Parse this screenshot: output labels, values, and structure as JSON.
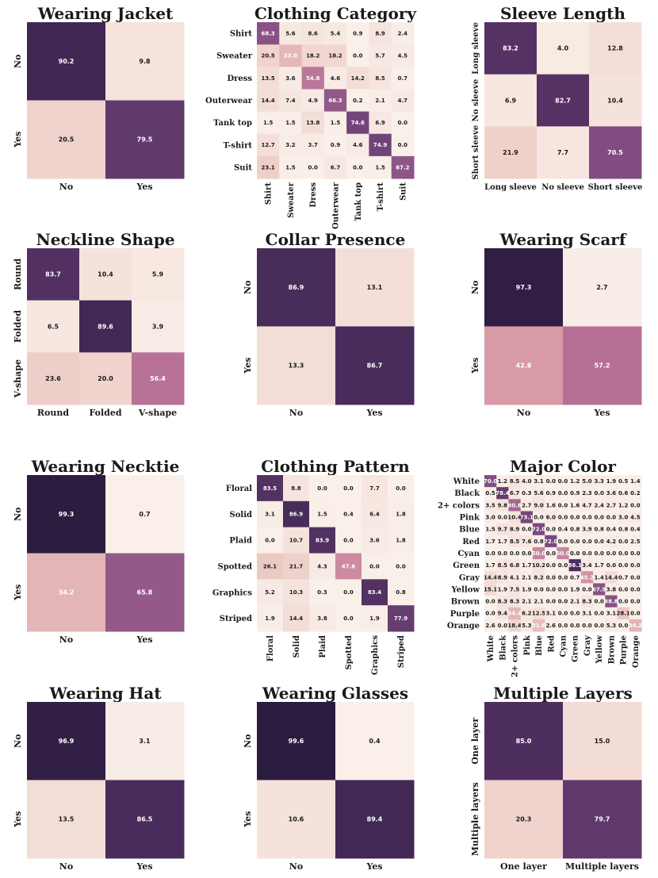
{
  "chart_data": [
    {
      "type": "heatmap",
      "title": "Wearing Jacket",
      "rows": [
        "No",
        "Yes"
      ],
      "cols": [
        "No",
        "Yes"
      ],
      "values": [
        [
          90.2,
          9.8
        ],
        [
          20.5,
          79.5
        ]
      ]
    },
    {
      "type": "heatmap",
      "title": "Clothing Category",
      "rows": [
        "Shirt",
        "Sweater",
        "Dress",
        "Outerwear",
        "Tank top",
        "T-shirt",
        "Suit"
      ],
      "cols": [
        "Shirt",
        "Sweater",
        "Dress",
        "Outerwear",
        "Tank top",
        "T-shirt",
        "Suit"
      ],
      "values": [
        [
          68.3,
          5.6,
          8.6,
          5.4,
          0.9,
          8.9,
          2.4
        ],
        [
          20.5,
          33.0,
          18.2,
          18.2,
          0.0,
          5.7,
          4.5
        ],
        [
          13.5,
          3.6,
          54.8,
          4.6,
          14.2,
          8.5,
          0.7
        ],
        [
          14.4,
          7.4,
          4.9,
          66.3,
          0.2,
          2.1,
          4.7
        ],
        [
          1.5,
          1.5,
          13.8,
          1.5,
          74.6,
          6.9,
          0.0
        ],
        [
          12.7,
          3.2,
          3.7,
          0.9,
          4.6,
          74.9,
          0.0
        ],
        [
          23.1,
          1.5,
          0.0,
          6.7,
          0.0,
          1.5,
          67.2
        ]
      ]
    },
    {
      "type": "heatmap",
      "title": "Sleeve Length",
      "rows": [
        "Long sleeve",
        "No sleeve",
        "Short sleeve"
      ],
      "cols": [
        "Long sleeve",
        "No sleeve",
        "Short sleeve"
      ],
      "values": [
        [
          83.2,
          4.0,
          12.8
        ],
        [
          6.9,
          82.7,
          10.4
        ],
        [
          21.9,
          7.7,
          70.5
        ]
      ]
    },
    {
      "type": "heatmap",
      "title": "Neckline Shape",
      "rows": [
        "Round",
        "Folded",
        "V-shape"
      ],
      "cols": [
        "Round",
        "Folded",
        "V-shape"
      ],
      "values": [
        [
          83.7,
          10.4,
          5.9
        ],
        [
          6.5,
          89.6,
          3.9
        ],
        [
          23.6,
          20.0,
          56.4
        ]
      ]
    },
    {
      "type": "heatmap",
      "title": "Collar Presence",
      "rows": [
        "No",
        "Yes"
      ],
      "cols": [
        "No",
        "Yes"
      ],
      "values": [
        [
          86.9,
          13.1
        ],
        [
          13.3,
          86.7
        ]
      ]
    },
    {
      "type": "heatmap",
      "title": "Wearing Scarf",
      "rows": [
        "No",
        "Yes"
      ],
      "cols": [
        "No",
        "Yes"
      ],
      "values": [
        [
          97.3,
          2.7
        ],
        [
          42.8,
          57.2
        ]
      ]
    },
    {
      "type": "heatmap",
      "title": "Wearing Necktie",
      "rows": [
        "No",
        "Yes"
      ],
      "cols": [
        "No",
        "Yes"
      ],
      "values": [
        [
          99.3,
          0.7
        ],
        [
          34.2,
          65.8
        ]
      ]
    },
    {
      "type": "heatmap",
      "title": "Clothing Pattern",
      "rows": [
        "Floral",
        "Solid",
        "Plaid",
        "Spotted",
        "Graphics",
        "Striped"
      ],
      "cols": [
        "Floral",
        "Solid",
        "Plaid",
        "Spotted",
        "Graphics",
        "Striped"
      ],
      "values": [
        [
          83.5,
          8.8,
          0.0,
          0.0,
          7.7,
          0.0
        ],
        [
          3.1,
          86.9,
          1.5,
          0.4,
          6.4,
          1.8
        ],
        [
          0.0,
          10.7,
          83.9,
          0.0,
          3.6,
          1.8
        ],
        [
          26.1,
          21.7,
          4.3,
          47.8,
          0.0,
          0.0
        ],
        [
          5.2,
          10.3,
          0.3,
          0.0,
          83.4,
          0.8
        ],
        [
          1.9,
          14.4,
          3.8,
          0.0,
          1.9,
          77.9
        ]
      ]
    },
    {
      "type": "heatmap",
      "title": "Major Color",
      "rows": [
        "White",
        "Black",
        "2+ colors",
        "Pink",
        "Blue",
        "Red",
        "Cyan",
        "Green",
        "Gray",
        "Yellow",
        "Brown",
        "Purple",
        "Orange"
      ],
      "cols": [
        "White",
        "Black",
        "2+ colors",
        "Pink",
        "Blue",
        "Red",
        "Cyan",
        "Green",
        "Gray",
        "Yellow",
        "Brown",
        "Purple",
        "Orange"
      ],
      "values": [
        [
          70.0,
          1.2,
          8.5,
          4.0,
          3.1,
          0.0,
          0.0,
          1.2,
          5.0,
          3.3,
          1.9,
          0.5,
          1.4
        ],
        [
          0.5,
          78.4,
          6.7,
          0.3,
          5.6,
          0.9,
          0.0,
          0.9,
          2.3,
          0.0,
          3.6,
          0.6,
          0.2
        ],
        [
          3.5,
          9.8,
          60.8,
          2.7,
          9.0,
          1.6,
          0.0,
          1.6,
          4.7,
          2.4,
          2.7,
          1.2,
          0.0
        ],
        [
          3.0,
          0.0,
          10.4,
          73.1,
          0.0,
          6.0,
          0.0,
          0.0,
          0.0,
          0.0,
          0.0,
          3.0,
          4.5
        ],
        [
          1.5,
          9.7,
          8.9,
          0.0,
          72.0,
          0.0,
          0.4,
          0.8,
          3.9,
          0.8,
          0.4,
          0.8,
          0.4
        ],
        [
          1.7,
          1.7,
          8.5,
          7.6,
          0.8,
          72.0,
          0.0,
          0.0,
          0.0,
          0.0,
          4.2,
          0.0,
          2.5
        ],
        [
          0.0,
          0.0,
          0.0,
          0.0,
          50.0,
          0.0,
          50.0,
          0.0,
          0.0,
          0.0,
          0.0,
          0.0,
          0.0
        ],
        [
          1.7,
          8.5,
          6.8,
          1.7,
          10.2,
          0.0,
          0.0,
          86.1,
          3.4,
          1.7,
          0.0,
          0.0,
          0.0
        ],
        [
          14.4,
          8.9,
          4.1,
          2.1,
          8.2,
          0.0,
          0.0,
          0.7,
          45.2,
          1.4,
          14.4,
          0.7,
          0.0
        ],
        [
          15.1,
          1.9,
          7.5,
          1.9,
          0.0,
          0.0,
          0.0,
          1.9,
          0.0,
          67.9,
          3.8,
          0.0,
          0.0
        ],
        [
          0.0,
          8.3,
          8.3,
          2.1,
          2.1,
          0.0,
          0.0,
          2.1,
          8.3,
          0.0,
          68.8,
          0.0,
          0.0
        ],
        [
          0.0,
          9.4,
          34.4,
          6.2,
          12.5,
          3.1,
          0.0,
          0.0,
          3.1,
          0.0,
          3.1,
          28.1,
          0.0
        ],
        [
          2.6,
          0.0,
          18.4,
          5.3,
          31.6,
          2.6,
          0.0,
          0.0,
          0.0,
          0.0,
          5.3,
          0.0,
          34.2
        ]
      ]
    },
    {
      "type": "heatmap",
      "title": "Wearing Hat",
      "rows": [
        "No",
        "Yes"
      ],
      "cols": [
        "No",
        "Yes"
      ],
      "values": [
        [
          96.9,
          3.1
        ],
        [
          13.5,
          86.5
        ]
      ]
    },
    {
      "type": "heatmap",
      "title": "Wearing Glasses",
      "rows": [
        "No",
        "Yes"
      ],
      "cols": [
        "No",
        "Yes"
      ],
      "values": [
        [
          99.6,
          0.4
        ],
        [
          10.6,
          89.4
        ]
      ]
    },
    {
      "type": "heatmap",
      "title": "Multiple Layers",
      "rows": [
        "One layer",
        "Multiple layers"
      ],
      "cols": [
        "One layer",
        "Multiple layers"
      ],
      "values": [
        [
          85.0,
          15.0
        ],
        [
          20.3,
          79.7
        ]
      ]
    }
  ],
  "colors": {
    "scale": [
      "#faf0ea",
      "#f3ddd6",
      "#ebc6c0",
      "#d79aa6",
      "#b67096",
      "#7d4a80",
      "#4b2d5d",
      "#2a1b3e"
    ],
    "light_text": "#ffffff",
    "dark_text": "#1a1a1a"
  }
}
